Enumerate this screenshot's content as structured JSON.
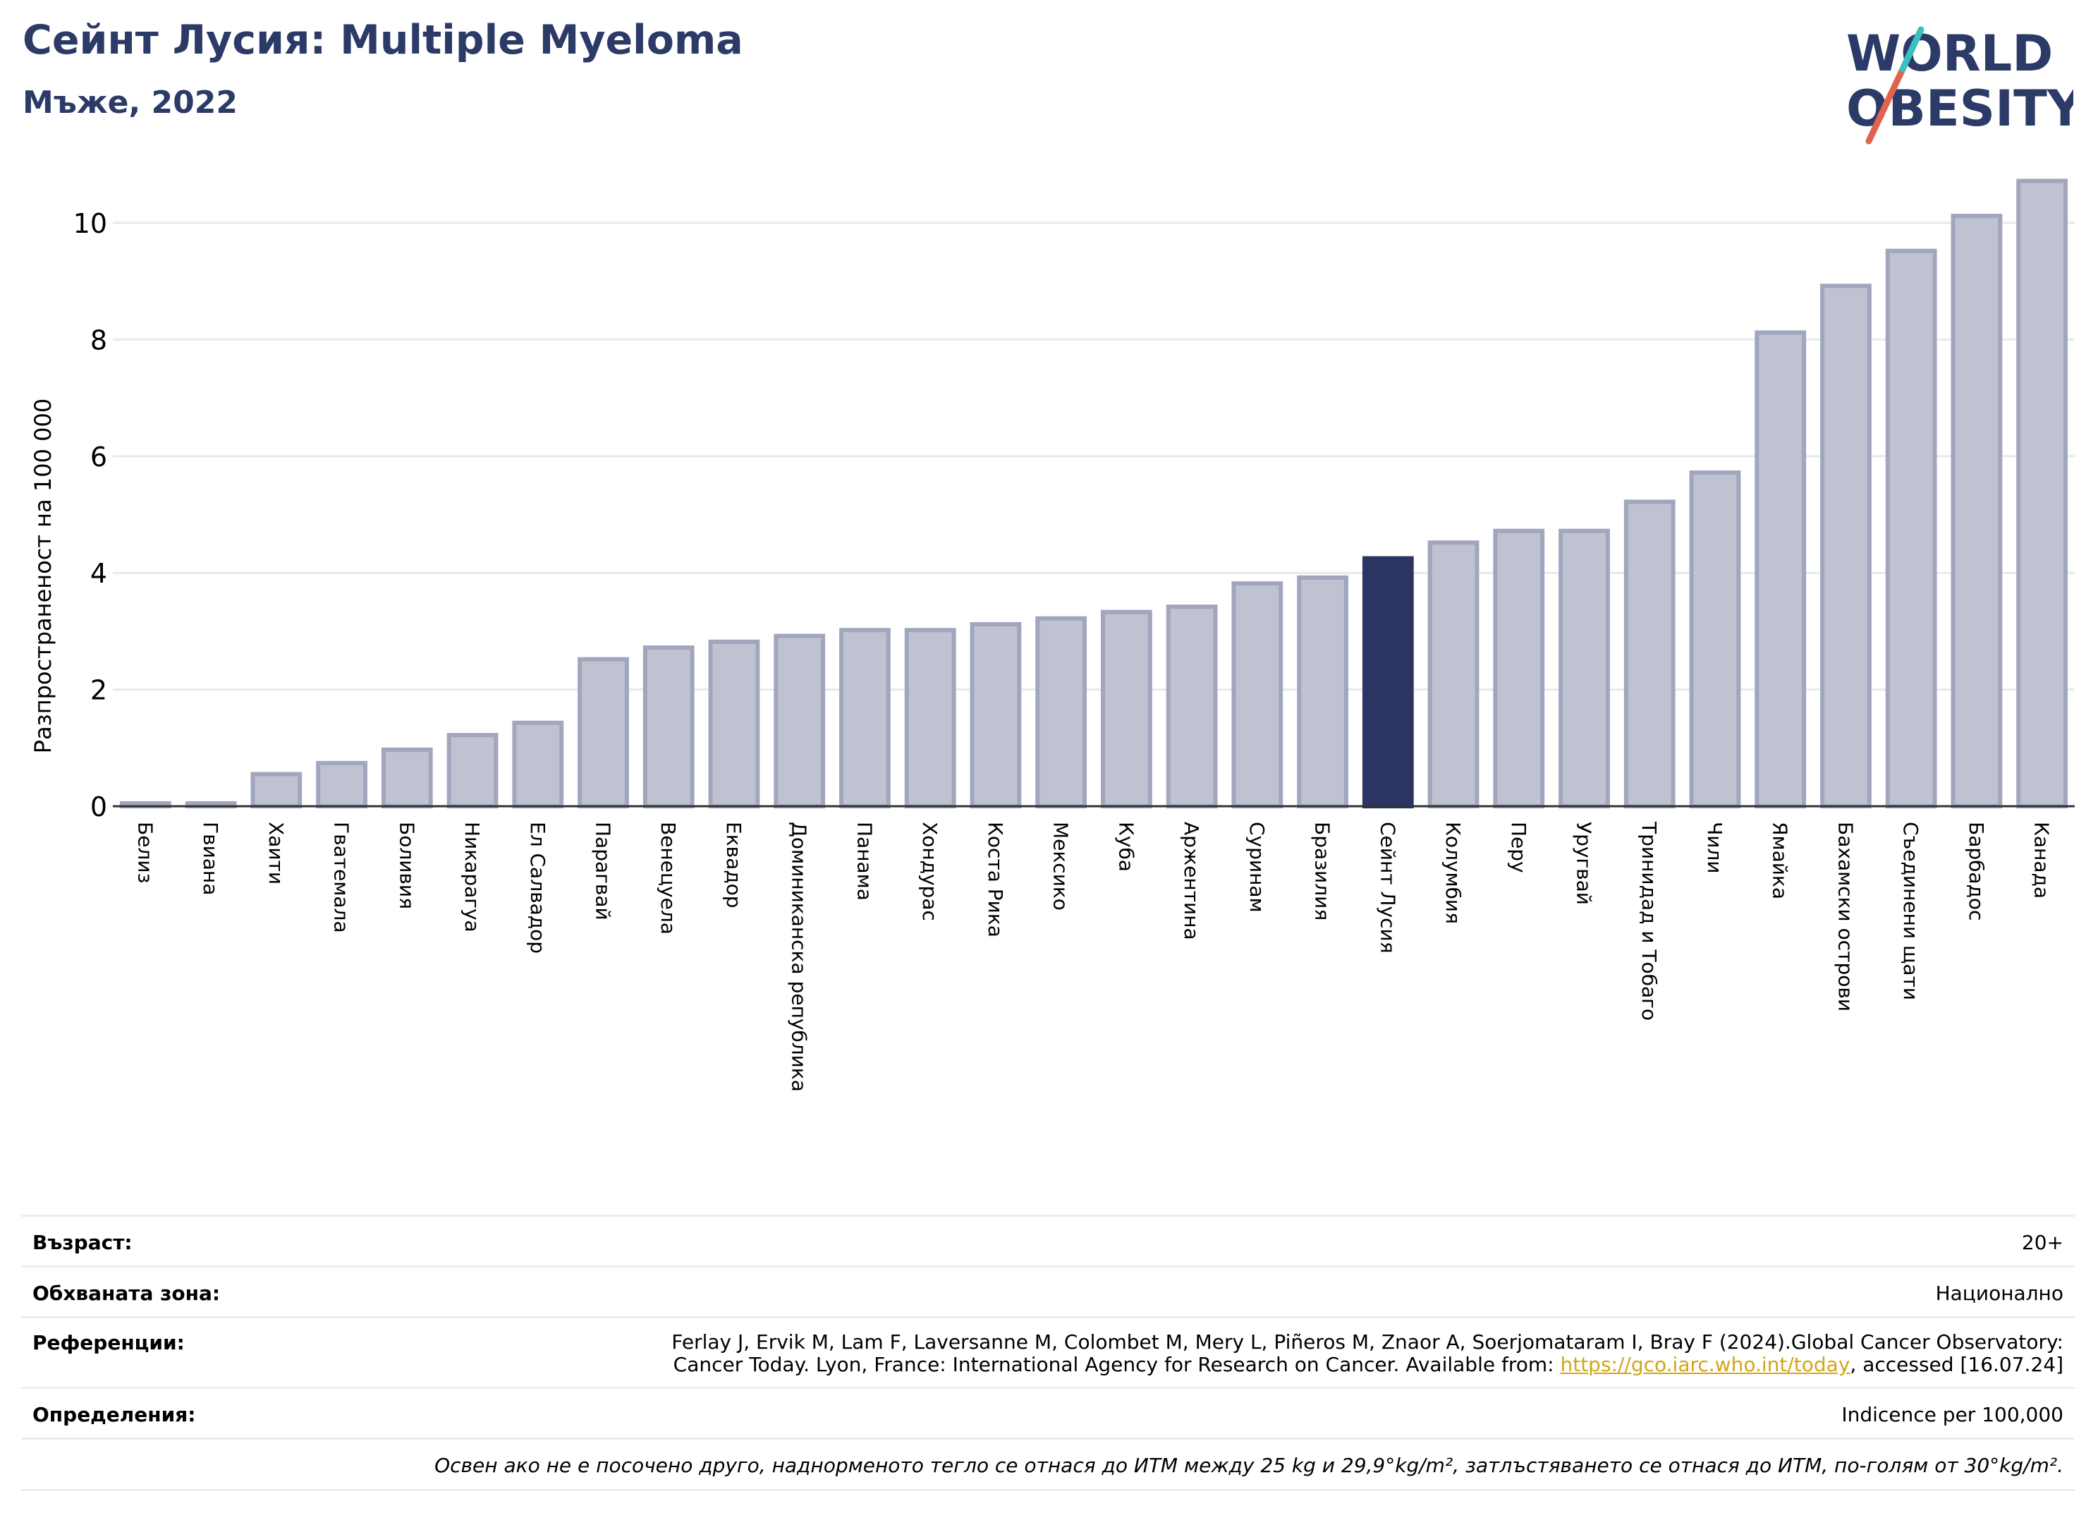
{
  "header": {
    "title": "Сейнт Лусия: Multiple Myeloma",
    "subtitle": "Мъже, 2022"
  },
  "logo": {
    "line1": "WORLD",
    "line2": "OBESITY"
  },
  "colors": {
    "bar": "#bfc2d0",
    "bar_border": "#a1a6bd",
    "highlight": "#2b3462",
    "grid": "#e6e9ed",
    "logo_text": "#2b3a67",
    "logo_slash_red": "#e0634d",
    "logo_slash_teal": "#3bbfbf"
  },
  "chart_data": {
    "type": "bar",
    "ylabel": "Разпространеност  на 100 000",
    "ylim": [
      0,
      11
    ],
    "yticks": [
      0,
      2,
      4,
      6,
      8,
      10
    ],
    "grid": true,
    "highlight": "Сейнт Лусия",
    "categories": [
      "Белиз",
      "Гвиана",
      "Хаити",
      "Гватемала",
      "Боливия",
      "Никарагуа",
      "Ел Салвадор",
      "Парагвай",
      "Венецуела",
      "Еквадор",
      "Доминиканска република",
      "Панама",
      "Хондурас",
      "Коста Рика",
      "Мексико",
      "Куба",
      "Аржентина",
      "Суринам",
      "Бразилия",
      "Сейнт Лусия",
      "Колумбия",
      "Перу",
      "Уругвай",
      "Тринидад и Тобаго",
      "Чили",
      "Ямайка",
      "Бахамски острови",
      "Съединени щати",
      "Барбадос",
      "Канада"
    ],
    "values": [
      0.05,
      0.05,
      0.55,
      0.74,
      0.97,
      1.22,
      1.43,
      2.52,
      2.72,
      2.82,
      2.92,
      3.02,
      3.02,
      3.12,
      3.22,
      3.33,
      3.42,
      3.82,
      3.92,
      4.25,
      4.52,
      4.72,
      4.72,
      5.22,
      5.72,
      8.12,
      8.92,
      9.52,
      10.12,
      10.72
    ]
  },
  "info": {
    "age_label": "Възраст:",
    "age_value": "20+",
    "area_label": "Обхваната зона:",
    "area_value": "Национално",
    "ref_label": "Референции:",
    "ref_line1": "Ferlay J, Ervik M, Lam F, Laversanne M, Colombet M, Mery L, Piñeros M, Znaor A, Soerjomataram I, Bray F (2024).Global Cancer Observatory:",
    "ref_line2_pre": "Cancer Today. Lyon, France: International Agency for Research on Cancer. Available from: ",
    "ref_link": "https://gco.iarc.who.int/today",
    "ref_line2_post": ", accessed [16.07.24]",
    "def_label": "Определения:",
    "def_value": "Indicence per 100,000",
    "note": "Освен ако не е посочено друго, наднорменото тегло се отнася до ИТМ между 25 kg и 29,9°kg/m², затлъстяването се отнася до ИТМ, по-голям от 30°kg/m²."
  }
}
